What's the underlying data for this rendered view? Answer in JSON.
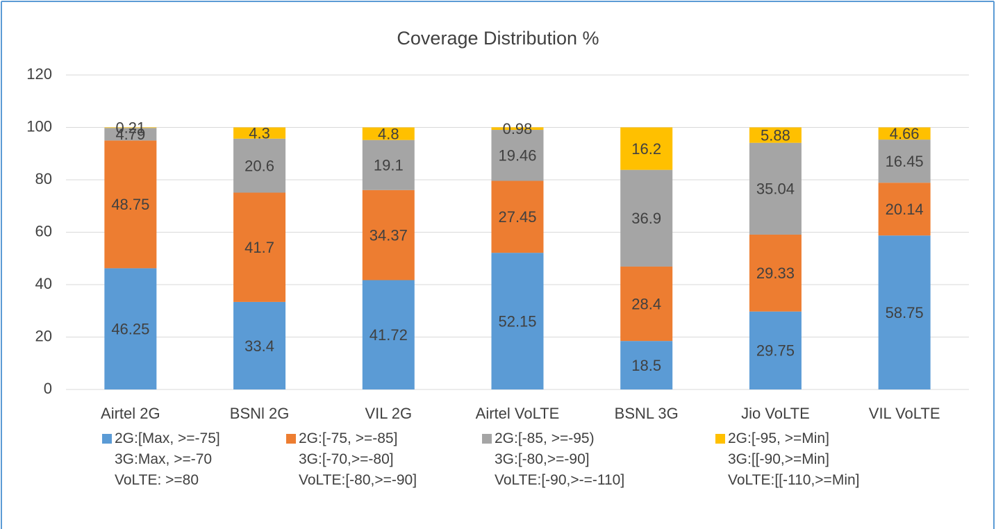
{
  "chart_data": {
    "type": "stacked_bar",
    "title": "Coverage Distribution %",
    "categories": [
      "Airtel 2G",
      "BSNl 2G",
      "VIL 2G",
      "Airtel VoLTE",
      "BSNL 3G",
      "Jio VoLTE",
      "VIL VoLTE"
    ],
    "series": [
      {
        "name": "2G:[Max, >=-75]\n3G:Max, >=-70\nVoLTE: >=80",
        "color": "#5b9bd5",
        "values": [
          46.25,
          33.4,
          41.72,
          52.15,
          18.5,
          29.75,
          58.75
        ]
      },
      {
        "name": "2G:[-75, >=-85]\n3G:[-70,>=-80]\nVoLTE:[-80,>=-90]",
        "color": "#ed7d31",
        "values": [
          48.75,
          41.7,
          34.37,
          27.45,
          28.4,
          29.33,
          20.14
        ]
      },
      {
        "name": "2G:[-85, >=-95)\n3G:[-80,>=-90]\nVoLTE:[-90,>-=-110]",
        "color": "#a5a5a5",
        "values": [
          4.79,
          20.6,
          19.1,
          19.46,
          36.9,
          35.04,
          16.45
        ]
      },
      {
        "name": "2G:[-95, >=Min]\n3G:[[-90,>=Min]\nVoLTE:[[-110,>=Min]",
        "color": "#ffc000",
        "values": [
          0.21,
          4.3,
          4.8,
          0.98,
          16.2,
          5.88,
          4.66
        ]
      }
    ],
    "ylim": [
      0,
      120
    ],
    "yticks": [
      0,
      20,
      40,
      60,
      80,
      100,
      120
    ],
    "grid": true,
    "legend": "bottom"
  }
}
